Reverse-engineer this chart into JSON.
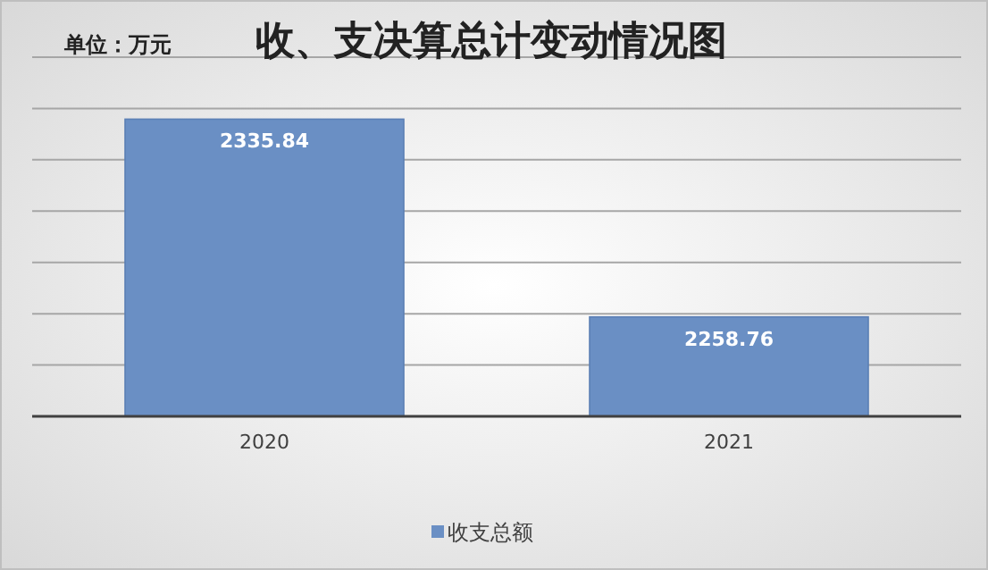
{
  "chart_data": {
    "type": "bar",
    "title": "收、支决算总计变动情况图",
    "subtitle": "单位：万元",
    "categories": [
      "2020",
      "2021"
    ],
    "series": [
      {
        "name": "收支总额",
        "color": "#6a8fc4",
        "values": [
          2335.84,
          2258.76
        ]
      }
    ],
    "ylim": [
      2220,
      2360
    ],
    "yticks": [
      {
        "value": 2220,
        "label": null
      },
      {
        "value": 2240,
        "label": null
      },
      {
        "value": 2260,
        "label": null
      },
      {
        "value": 2280,
        "label": null
      },
      {
        "value": 2300,
        "label": null
      },
      {
        "value": 2320,
        "label": null
      },
      {
        "value": 2340,
        "label": null
      },
      {
        "value": 2360,
        "label": null
      }
    ],
    "grid": "y",
    "legend": "bottom",
    "data_labels": true,
    "tick_labels": "x"
  }
}
